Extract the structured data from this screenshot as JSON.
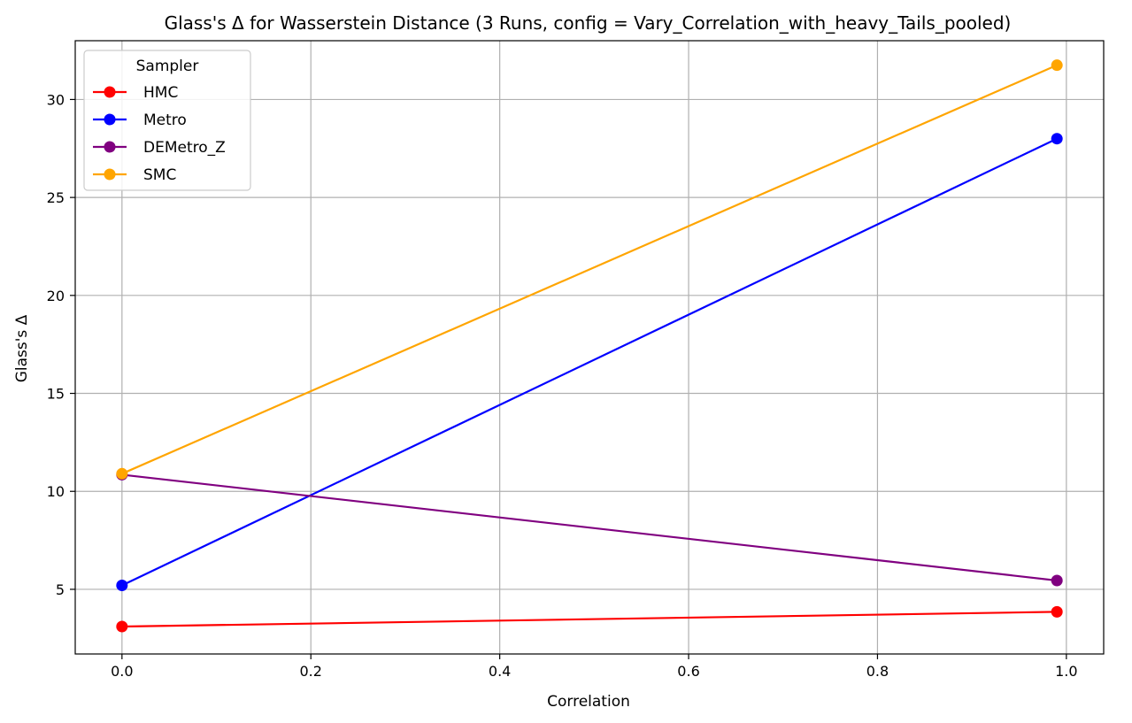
{
  "chart_data": {
    "type": "line",
    "title": "Glass's Δ for Wasserstein Distance (3 Runs, config = Vary_Correlation_with_heavy_Tails_pooled)",
    "xlabel": "Correlation",
    "ylabel": "Glass's Δ",
    "xlim": [
      -0.0495,
      1.0395
    ],
    "ylim": [
      1.7,
      33.0
    ],
    "xticks": [
      0.0,
      0.2,
      0.4,
      0.6,
      0.8,
      1.0
    ],
    "xtick_labels": [
      "0.0",
      "0.2",
      "0.4",
      "0.6",
      "0.8",
      "1.0"
    ],
    "yticks": [
      5,
      10,
      15,
      20,
      25,
      30
    ],
    "ytick_labels": [
      "5",
      "10",
      "15",
      "20",
      "25",
      "30"
    ],
    "grid": true,
    "legend": {
      "title": "Sampler",
      "position": "top-left"
    },
    "x": [
      0.0,
      0.99
    ],
    "series": [
      {
        "name": "HMC",
        "color": "#ff0000",
        "values": [
          3.1,
          3.85
        ]
      },
      {
        "name": "Metro",
        "color": "#0000ff",
        "values": [
          5.2,
          28.0
        ]
      },
      {
        "name": "DEMetro_Z",
        "color": "#800080",
        "values": [
          10.85,
          5.45
        ]
      },
      {
        "name": "SMC",
        "color": "#ffa500",
        "values": [
          10.9,
          31.75
        ]
      }
    ]
  }
}
